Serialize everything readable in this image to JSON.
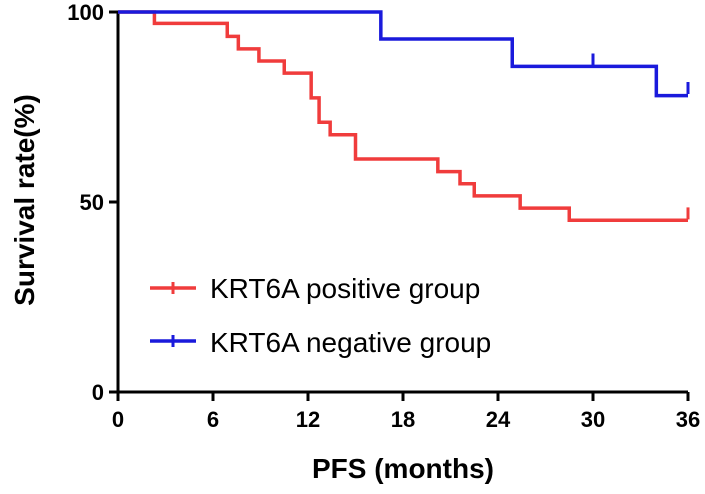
{
  "chart_data": {
    "type": "line",
    "subtype": "kaplan-meier",
    "title": "",
    "xlabel": "PFS (months)",
    "ylabel": "Survival rate(%)",
    "xlim": [
      0,
      36
    ],
    "ylim": [
      0,
      100
    ],
    "x_ticks": [
      0,
      6,
      12,
      18,
      24,
      30,
      36
    ],
    "y_ticks": [
      0,
      50,
      100
    ],
    "x_tick_labels": [
      "0",
      "6",
      "12",
      "18",
      "24",
      "30",
      "36"
    ],
    "y_tick_labels": [
      "0",
      "50",
      "100"
    ],
    "grid": false,
    "legend_position": "bottom-left",
    "series": [
      {
        "name": "KRT6A positive group",
        "color": "#f03c3c",
        "steps": [
          [
            0,
            100
          ],
          [
            2.3,
            97
          ],
          [
            6.9,
            93.6
          ],
          [
            7.6,
            90.3
          ],
          [
            8.9,
            87.1
          ],
          [
            10.5,
            83.9
          ],
          [
            12.2,
            77.4
          ],
          [
            12.7,
            71
          ],
          [
            13.4,
            67.7
          ],
          [
            15,
            61.3
          ],
          [
            20.2,
            58
          ],
          [
            21.6,
            54.8
          ],
          [
            22.5,
            51.6
          ],
          [
            25.4,
            48.4
          ],
          [
            28.5,
            45.2
          ],
          [
            36,
            45.2
          ]
        ],
        "censored": [
          [
            36,
            47
          ]
        ]
      },
      {
        "name": "KRT6A negative group",
        "color": "#1a1adc",
        "steps": [
          [
            0,
            100
          ],
          [
            16.6,
            92.9
          ],
          [
            24.9,
            85.7
          ],
          [
            34,
            78
          ],
          [
            36,
            78
          ]
        ],
        "censored": [
          [
            30,
            87.5
          ],
          [
            36,
            80
          ]
        ]
      }
    ]
  }
}
